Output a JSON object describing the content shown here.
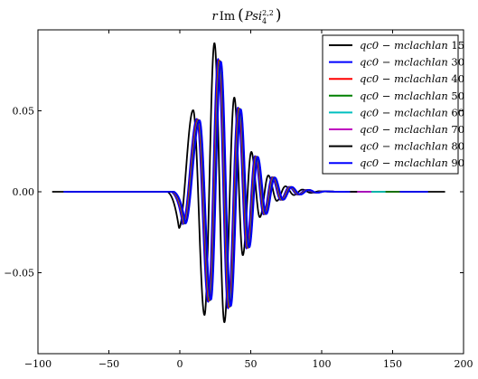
{
  "chart_data": {
    "type": "line",
    "title": "rIm(Psi4^{2,2})",
    "title_parts": {
      "r": "r",
      "im": "Im",
      "psi": "Psi",
      "sub": "4",
      "sup": "2,2"
    },
    "xlabel": "",
    "ylabel": "",
    "xlim": [
      -100,
      200
    ],
    "ylim": [
      -0.1,
      0.1
    ],
    "xticks": [
      -100,
      -50,
      0,
      50,
      100,
      150,
      200
    ],
    "xtick_labels": [
      "−100",
      "−50",
      "0",
      "50",
      "100",
      "150",
      "200"
    ],
    "yticks": [
      -0.05,
      0.0,
      0.05
    ],
    "ytick_labels": [
      "−0.05",
      "0.00",
      "0.05"
    ],
    "grid": false,
    "legend_position": "top-right",
    "series": [
      {
        "name": "qc0 − mclachlan 15",
        "legend_label": "qc0 − mclachlan",
        "legend_num": "15",
        "color": "#000000",
        "x_start": -90,
        "x_end": 187,
        "shift": -2.6,
        "scale": 1.12
      },
      {
        "name": "qc0 − mclachlan 30",
        "legend_label": "qc0 − mclachlan",
        "legend_num": "30",
        "color": "#0000ff",
        "x_start": -78,
        "x_end": 175,
        "shift": 0.0,
        "scale": 1.0
      },
      {
        "name": "qc0 − mclachlan 40",
        "legend_label": "qc0 − mclachlan",
        "legend_num": "40",
        "color": "#ff0000",
        "x_start": -75,
        "x_end": 155,
        "shift": 0.8,
        "scale": 0.99
      },
      {
        "name": "qc0 − mclachlan 50",
        "legend_label": "qc0 − mclachlan",
        "legend_num": "50",
        "color": "#008000",
        "x_start": -75,
        "x_end": 155,
        "shift": 1.2,
        "scale": 0.985
      },
      {
        "name": "qc0 − mclachlan 60",
        "legend_label": "qc0 − mclachlan",
        "legend_num": "60",
        "color": "#00bfbf",
        "x_start": -75,
        "x_end": 145,
        "shift": 1.4,
        "scale": 0.98
      },
      {
        "name": "qc0 − mclachlan 70",
        "legend_label": "qc0 − mclachlan",
        "legend_num": "70",
        "color": "#bf00bf",
        "x_start": -75,
        "x_end": 135,
        "shift": 1.6,
        "scale": 0.98
      },
      {
        "name": "qc0 − mclachlan 80",
        "legend_label": "qc0 − mclachlan",
        "legend_num": "80",
        "color": "#000000",
        "x_start": -80,
        "x_end": 125,
        "shift": 1.8,
        "scale": 0.98
      },
      {
        "name": "qc0 − mclachlan 90",
        "legend_label": "qc0 − mclachlan",
        "legend_num": "90",
        "color": "#0000ff",
        "x_start": -82,
        "x_end": 120,
        "shift": 2.0,
        "scale": 0.98
      }
    ],
    "waveform_peaks": [
      {
        "x": 2,
        "y": -0.02
      },
      {
        "x": 12,
        "y": 0.045
      },
      {
        "x": 20,
        "y": -0.068
      },
      {
        "x": 27,
        "y": 0.082
      },
      {
        "x": 34,
        "y": -0.072
      },
      {
        "x": 41,
        "y": 0.052
      },
      {
        "x": 47,
        "y": -0.035
      },
      {
        "x": 53,
        "y": 0.022
      },
      {
        "x": 59,
        "y": -0.014
      },
      {
        "x": 65,
        "y": 0.009
      },
      {
        "x": 71,
        "y": -0.005
      },
      {
        "x": 77,
        "y": 0.003
      },
      {
        "x": 83,
        "y": -0.0018
      },
      {
        "x": 89,
        "y": 0.0012
      },
      {
        "x": 95,
        "y": -0.0006
      },
      {
        "x": 101,
        "y": 0.0003
      }
    ]
  }
}
